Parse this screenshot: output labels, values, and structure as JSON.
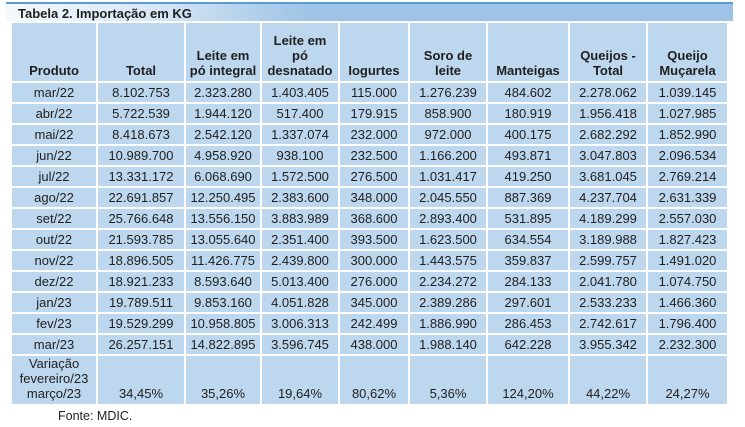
{
  "title": "Tabela 2. Importação em KG",
  "columns": [
    "Produto",
    "Total",
    "Leite em\npó integral",
    "Leite em\npó\ndesnatado",
    "Iogurtes",
    "Soro de\nleite",
    "Manteigas",
    "Queijos -\nTotal",
    "Queijo\nMuçarela"
  ],
  "rows": [
    {
      "month": "mar/22",
      "values": [
        "8.102.753",
        "2.323.280",
        "1.403.405",
        "115.000",
        "1.276.239",
        "484.602",
        "2.278.062",
        "1.039.145"
      ]
    },
    {
      "month": "abr/22",
      "values": [
        "5.722.539",
        "1.944.120",
        "517.400",
        "179.915",
        "858.900",
        "180.919",
        "1.956.418",
        "1.027.985"
      ]
    },
    {
      "month": "mai/22",
      "values": [
        "8.418.673",
        "2.542.120",
        "1.337.074",
        "232.000",
        "972.000",
        "400.175",
        "2.682.292",
        "1.852.990"
      ]
    },
    {
      "month": "jun/22",
      "values": [
        "10.989.700",
        "4.958.920",
        "938.100",
        "232.500",
        "1.166.200",
        "493.871",
        "3.047.803",
        "2.096.534"
      ]
    },
    {
      "month": "jul/22",
      "values": [
        "13.331.172",
        "6.068.690",
        "1.572.500",
        "276.500",
        "1.031.417",
        "419.250",
        "3.681.045",
        "2.769.214"
      ]
    },
    {
      "month": "ago/22",
      "values": [
        "22.691.857",
        "12.250.495",
        "2.383.600",
        "348.000",
        "2.045.550",
        "887.369",
        "4.237.704",
        "2.631.339"
      ]
    },
    {
      "month": "set/22",
      "values": [
        "25.766.648",
        "13.556.150",
        "3.883.989",
        "368.600",
        "2.893.400",
        "531.895",
        "4.189.299",
        "2.557.030"
      ]
    },
    {
      "month": "out/22",
      "values": [
        "21.593.785",
        "13.055.640",
        "2.351.400",
        "393.500",
        "1.623.500",
        "634.554",
        "3.189.988",
        "1.827.423"
      ]
    },
    {
      "month": "nov/22",
      "values": [
        "18.896.505",
        "11.426.775",
        "2.439.800",
        "300.000",
        "1.443.575",
        "359.837",
        "2.599.757",
        "1.491.020"
      ]
    },
    {
      "month": "dez/22",
      "values": [
        "18.921.233",
        "8.593.640",
        "5.013.400",
        "276.000",
        "2.234.272",
        "284.133",
        "2.041.780",
        "1.074.750"
      ]
    },
    {
      "month": "jan/23",
      "values": [
        "19.789.511",
        "9.853.160",
        "4.051.828",
        "345.000",
        "2.389.286",
        "297.601",
        "2.533.233",
        "1.466.360"
      ]
    },
    {
      "month": "fev/23",
      "values": [
        "19.529.299",
        "10.958.805",
        "3.006.313",
        "242.499",
        "1.886.990",
        "286.453",
        "2.742.617",
        "1.796.400"
      ]
    },
    {
      "month": "mar/23",
      "values": [
        "26.257.151",
        "14.822.895",
        "3.596.745",
        "438.000",
        "1.988.140",
        "642.228",
        "3.955.342",
        "2.232.300"
      ]
    }
  ],
  "variation": {
    "label": "Variação\nfevereiro/23\nmarço/23",
    "values": [
      "34,45%",
      "35,26%",
      "19,64%",
      "80,62%",
      "5,36%",
      "124,20%",
      "44,22%",
      "24,27%"
    ]
  },
  "source": "Fonte: MDIC.",
  "colors": {
    "accent": "#5b9bd5",
    "band": "#9dc3e6",
    "cell": "#bdd7ee",
    "text": "#1f1f1f"
  }
}
